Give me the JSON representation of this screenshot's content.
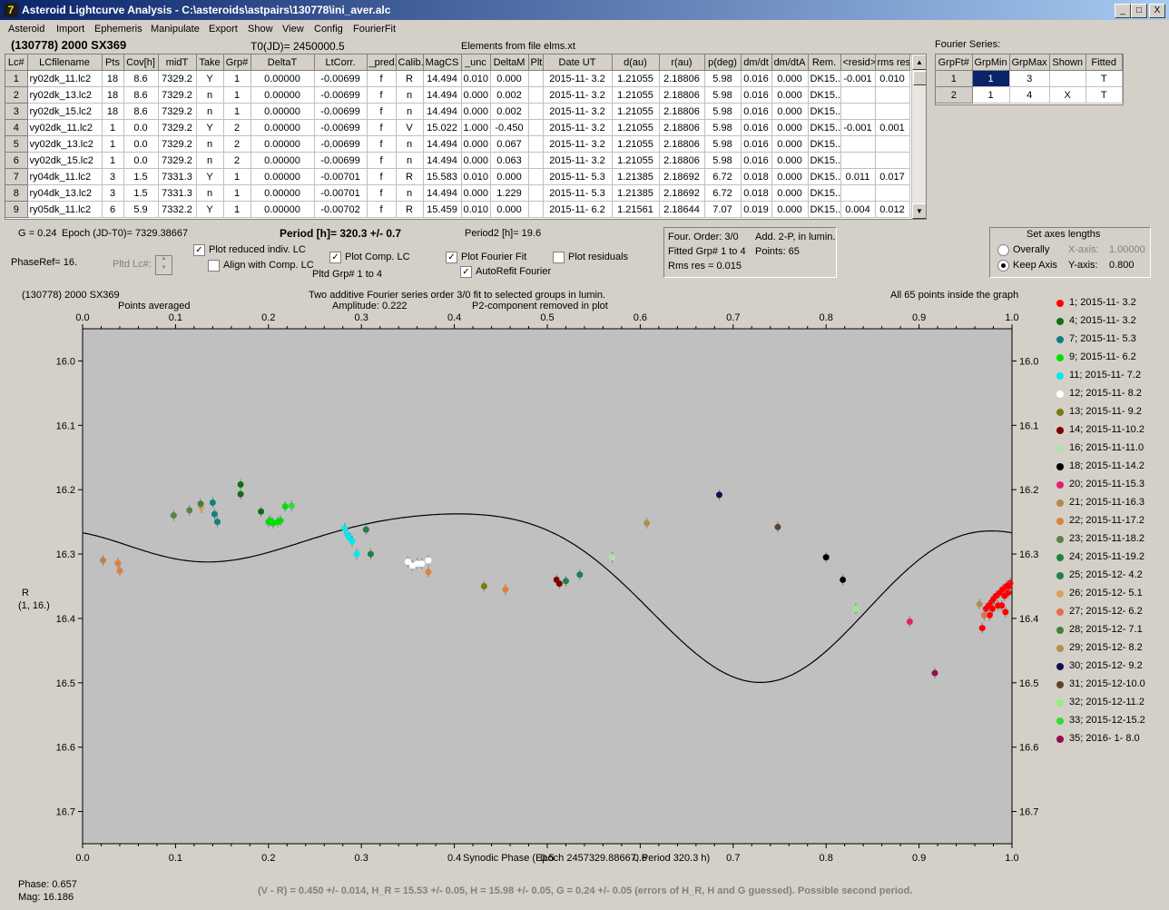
{
  "window": {
    "title": "Asteroid Lightcurve Analysis - C:\\asteroids\\astpairs\\130778\\ini_aver.alc",
    "min": "_",
    "max": "□",
    "close": "X"
  },
  "menu": [
    "Asteroid",
    "Import",
    "Ephemeris",
    "Manipulate",
    "Export",
    "Show",
    "View",
    "Config",
    "FourierFit"
  ],
  "header": {
    "object": "(130778) 2000 SX369",
    "t0": "T0(JD)= 2450000.5",
    "elements": "Elements from file elms.xt",
    "fourier_series_label": "Fourier Series:"
  },
  "lc_table": {
    "columns": [
      "Lc#",
      "LCfilename",
      "Pts",
      "Cov[h]",
      "midT",
      "Take",
      "Grp#",
      "DeltaT",
      "LtCorr.",
      "_pred.",
      "Calib.",
      "MagCS",
      "_unc",
      "DeltaM",
      "Plt",
      "Date UT",
      "d(au)",
      "r(au)",
      "p(deg)",
      "dm/dt",
      "dm/dtA",
      "Rem.",
      "<resid>",
      "rms res"
    ],
    "rows": [
      [
        "1",
        "ry02dk_11.lc2",
        "18",
        "8.6",
        "7329.2",
        "Y",
        "1",
        "0.00000",
        "-0.00699",
        "f",
        "R",
        "14.494",
        "0.010",
        "0.000",
        "",
        "2015-11- 3.2",
        "1.21055",
        "2.18806",
        "5.98",
        "0.016",
        "0.000",
        "DK15..",
        "-0.001",
        "0.010"
      ],
      [
        "2",
        "ry02dk_13.lc2",
        "18",
        "8.6",
        "7329.2",
        "n",
        "1",
        "0.00000",
        "-0.00699",
        "f",
        "n",
        "14.494",
        "0.000",
        "0.002",
        "",
        "2015-11- 3.2",
        "1.21055",
        "2.18806",
        "5.98",
        "0.016",
        "0.000",
        "DK15..",
        "",
        ""
      ],
      [
        "3",
        "ry02dk_15.lc2",
        "18",
        "8.6",
        "7329.2",
        "n",
        "1",
        "0.00000",
        "-0.00699",
        "f",
        "n",
        "14.494",
        "0.000",
        "0.002",
        "",
        "2015-11- 3.2",
        "1.21055",
        "2.18806",
        "5.98",
        "0.016",
        "0.000",
        "DK15..",
        "",
        ""
      ],
      [
        "4",
        "vy02dk_11.lc2",
        "1",
        "0.0",
        "7329.2",
        "Y",
        "2",
        "0.00000",
        "-0.00699",
        "f",
        "V",
        "15.022",
        "1.000",
        "-0.450",
        "",
        "2015-11- 3.2",
        "1.21055",
        "2.18806",
        "5.98",
        "0.016",
        "0.000",
        "DK15..",
        "-0.001",
        "0.001"
      ],
      [
        "5",
        "vy02dk_13.lc2",
        "1",
        "0.0",
        "7329.2",
        "n",
        "2",
        "0.00000",
        "-0.00699",
        "f",
        "n",
        "14.494",
        "0.000",
        "0.067",
        "",
        "2015-11- 3.2",
        "1.21055",
        "2.18806",
        "5.98",
        "0.016",
        "0.000",
        "DK15..",
        "",
        ""
      ],
      [
        "6",
        "vy02dk_15.lc2",
        "1",
        "0.0",
        "7329.2",
        "n",
        "2",
        "0.00000",
        "-0.00699",
        "f",
        "n",
        "14.494",
        "0.000",
        "0.063",
        "",
        "2015-11- 3.2",
        "1.21055",
        "2.18806",
        "5.98",
        "0.016",
        "0.000",
        "DK15..",
        "",
        ""
      ],
      [
        "7",
        "ry04dk_11.lc2",
        "3",
        "1.5",
        "7331.3",
        "Y",
        "1",
        "0.00000",
        "-0.00701",
        "f",
        "R",
        "15.583",
        "0.010",
        "0.000",
        "",
        "2015-11- 5.3",
        "1.21385",
        "2.18692",
        "6.72",
        "0.018",
        "0.000",
        "DK15..",
        "0.011",
        "0.017"
      ],
      [
        "8",
        "ry04dk_13.lc2",
        "3",
        "1.5",
        "7331.3",
        "n",
        "1",
        "0.00000",
        "-0.00701",
        "f",
        "n",
        "14.494",
        "0.000",
        "1.229",
        "",
        "2015-11- 5.3",
        "1.21385",
        "2.18692",
        "6.72",
        "0.018",
        "0.000",
        "DK15..",
        "",
        ""
      ],
      [
        "9",
        "ry05dk_11.lc2",
        "6",
        "5.9",
        "7332.2",
        "Y",
        "1",
        "0.00000",
        "-0.00702",
        "f",
        "R",
        "15.459",
        "0.010",
        "0.000",
        "",
        "2015-11- 6.2",
        "1.21561",
        "2.18644",
        "7.07",
        "0.019",
        "0.000",
        "DK15..",
        "0.004",
        "0.012"
      ]
    ]
  },
  "fourier_table": {
    "columns": [
      "GrpFt#",
      "GrpMin",
      "GrpMax",
      "Shown",
      "Fitted"
    ],
    "rows": [
      [
        "1",
        "1",
        "3",
        "",
        "T"
      ],
      [
        "2",
        "1",
        "4",
        "X",
        "T"
      ]
    ]
  },
  "info": {
    "g": "G = 0.24",
    "epoch": "Epoch (JD-T0)= 7329.38667",
    "period": "Period [h]= 320.3 +/- 0.7",
    "period2": "Period2 [h]= 19.6",
    "phaseref": "PhaseRef= 16.",
    "pltd_lc": "Pltd Lc#:",
    "plot_reduced": "Plot reduced indiv. LC",
    "align_comp": "Align with Comp. LC",
    "plot_comp": "Plot Comp. LC",
    "pltd_grp": "Pltd Grp#  1   to   4",
    "plot_fourier": "Plot Fourier Fit",
    "autorefit": "AutoRefit Fourier",
    "plot_residuals": "Plot residuals",
    "four_order": "Four. Order:  3/0",
    "add2p": "Add. 2-P, in lumin.",
    "fitted_grp": "Fitted Grp# 1 to 4",
    "points": "Points: 65",
    "rms": "Rms res     = 0.015",
    "axes_title": "Set axes lengths",
    "overally": "Overally",
    "keep_axis": "Keep Axis",
    "xaxis_label": "X-axis:",
    "xaxis_val": "1.00000",
    "yaxis_label": "Y-axis:",
    "yaxis_val": "0.800"
  },
  "plot": {
    "object": "(130778) 2000 SX369",
    "averaged": "Points averaged",
    "desc1": "Two additive Fourier series order 3/0 fit to selected groups in lumin.",
    "desc2": "Amplitude: 0.222",
    "desc3": "P2-component removed in plot",
    "inside": "All 65 points inside the graph",
    "ylabel1": "R",
    "ylabel2": "(1, 16.)",
    "xlabel": "Synodic Phase (Epoch 2457329.88667, Period 320.3 h)"
  },
  "chart_data": {
    "type": "scatter",
    "xlim": [
      0.0,
      1.0
    ],
    "ylim": [
      16.75,
      15.95
    ],
    "y_inverted": true,
    "x_ticks": [
      "0.0",
      "0.1",
      "0.2",
      "0.3",
      "0.4",
      "0.5",
      "0.6",
      "0.7",
      "0.8",
      "0.9",
      "1.0"
    ],
    "y_ticks": [
      "16.0",
      "16.1",
      "16.2",
      "16.3",
      "16.4",
      "16.5",
      "16.6",
      "16.7"
    ],
    "fit_curve": {
      "mean": 16.325,
      "a1": 0.002,
      "b1": -0.09,
      "a2": -0.06,
      "b2": 0.035,
      "a3": 0.0,
      "b3": 0.02
    },
    "series": [
      {
        "name": "1; 2015-11- 3.2",
        "color": "#ff0000",
        "points": [
          [
            0.968,
            16.415
          ],
          [
            0.972,
            16.385
          ],
          [
            0.975,
            16.38
          ],
          [
            0.978,
            16.375
          ],
          [
            0.98,
            16.37
          ],
          [
            0.983,
            16.365
          ],
          [
            0.985,
            16.38
          ],
          [
            0.987,
            16.36
          ],
          [
            0.99,
            16.355
          ],
          [
            0.992,
            16.365
          ],
          [
            0.994,
            16.35
          ],
          [
            0.996,
            16.36
          ],
          [
            0.998,
            16.345
          ],
          [
            0.979,
            16.385
          ],
          [
            0.989,
            16.38
          ],
          [
            0.993,
            16.39
          ],
          [
            0.976,
            16.395
          ],
          [
            0.997,
            16.35
          ]
        ]
      },
      {
        "name": "4; 2015-11- 3.2",
        "color": "#107010",
        "points": [
          [
            0.17,
            16.192
          ],
          [
            0.17,
            16.207
          ],
          [
            0.192,
            16.234
          ]
        ]
      },
      {
        "name": "7; 2015-11- 5.3",
        "color": "#108080",
        "points": [
          [
            0.14,
            16.22
          ],
          [
            0.142,
            16.238
          ],
          [
            0.145,
            16.25
          ]
        ]
      },
      {
        "name": "9; 2015-11- 6.2",
        "color": "#00e000",
        "points": [
          [
            0.2,
            16.25
          ],
          [
            0.205,
            16.252
          ],
          [
            0.21,
            16.25
          ],
          [
            0.213,
            16.248
          ],
          [
            0.218,
            16.226
          ],
          [
            0.202,
            16.248
          ]
        ]
      },
      {
        "name": "11; 2015-11- 7.2",
        "color": "#00e8f0",
        "points": [
          [
            0.282,
            16.26
          ],
          [
            0.285,
            16.27
          ],
          [
            0.288,
            16.275
          ],
          [
            0.295,
            16.3
          ],
          [
            0.29,
            16.28
          ]
        ]
      },
      {
        "name": "12; 2015-11- 8.2",
        "color": "#ffffff",
        "points": [
          [
            0.35,
            16.312
          ],
          [
            0.355,
            16.318
          ],
          [
            0.36,
            16.315
          ],
          [
            0.365,
            16.315
          ],
          [
            0.372,
            16.31
          ]
        ]
      },
      {
        "name": "13; 2015-11- 9.2",
        "color": "#7a7a10",
        "points": [
          [
            0.432,
            16.35
          ]
        ]
      },
      {
        "name": "14; 2015-11-10.2",
        "color": "#800000",
        "points": [
          [
            0.51,
            16.34
          ],
          [
            0.513,
            16.346
          ]
        ]
      },
      {
        "name": "16; 2015-11-11.0",
        "color": "#b0e0b0",
        "points": [
          [
            0.57,
            16.305
          ]
        ]
      },
      {
        "name": "18; 2015-11-14.2",
        "color": "#000000",
        "points": [
          [
            0.8,
            16.305
          ],
          [
            0.818,
            16.34
          ]
        ]
      },
      {
        "name": "20; 2015-11-15.3",
        "color": "#e02070",
        "points": [
          [
            0.89,
            16.405
          ]
        ]
      },
      {
        "name": "21; 2015-11-16.3",
        "color": "#b8864a",
        "points": [
          [
            0.022,
            16.31
          ]
        ]
      },
      {
        "name": "22; 2015-11-17.2",
        "color": "#e08040",
        "points": [
          [
            0.038,
            16.314
          ],
          [
            0.04,
            16.326
          ],
          [
            0.455,
            16.355
          ],
          [
            0.372,
            16.328
          ]
        ]
      },
      {
        "name": "23; 2015-11-18.2",
        "color": "#608040",
        "points": [
          [
            0.098,
            16.24
          ],
          [
            0.115,
            16.232
          ]
        ]
      },
      {
        "name": "24; 2015-11-19.2",
        "color": "#208040",
        "points": [
          [
            0.305,
            16.262
          ],
          [
            0.31,
            16.3
          ]
        ]
      },
      {
        "name": "25; 2015-12- 4.2",
        "color": "#208050",
        "points": [
          [
            0.52,
            16.342
          ],
          [
            0.535,
            16.332
          ]
        ]
      },
      {
        "name": "26; 2015-12- 5.1",
        "color": "#e0a060",
        "points": [
          [
            0.128,
            16.228
          ]
        ]
      },
      {
        "name": "27; 2015-12- 6.2",
        "color": "#e07050",
        "points": [
          [
            0.97,
            16.395
          ]
        ]
      },
      {
        "name": "28; 2015-12- 7.1",
        "color": "#408040",
        "points": [
          [
            0.127,
            16.222
          ]
        ]
      },
      {
        "name": "29; 2015-12- 8.2",
        "color": "#b09050",
        "points": [
          [
            0.607,
            16.252
          ],
          [
            0.965,
            16.378
          ]
        ]
      },
      {
        "name": "30; 2015-12- 9.2",
        "color": "#101050",
        "points": [
          [
            0.685,
            16.208
          ]
        ]
      },
      {
        "name": "31; 2015-12-10.0",
        "color": "#604030",
        "points": [
          [
            0.748,
            16.258
          ]
        ]
      },
      {
        "name": "32; 2015-12-11.2",
        "color": "#90f080",
        "points": [
          [
            0.832,
            16.385
          ]
        ]
      },
      {
        "name": "33; 2015-12-15.2",
        "color": "#30e030",
        "points": [
          [
            0.225,
            16.225
          ]
        ]
      },
      {
        "name": "35; 2016- 1- 8.0",
        "color": "#901050",
        "points": [
          [
            0.917,
            16.485
          ]
        ]
      }
    ]
  },
  "status": {
    "phase": "Phase:  0.657",
    "mag": "Mag:    16.186",
    "result": "(V - R) = 0.450 +/- 0.014, H_R = 15.53 +/- 0.05, H = 15.98 +/- 0.05, G = 0.24 +/- 0.05 (errors of H_R, H and G guessed).  Possible second period."
  }
}
